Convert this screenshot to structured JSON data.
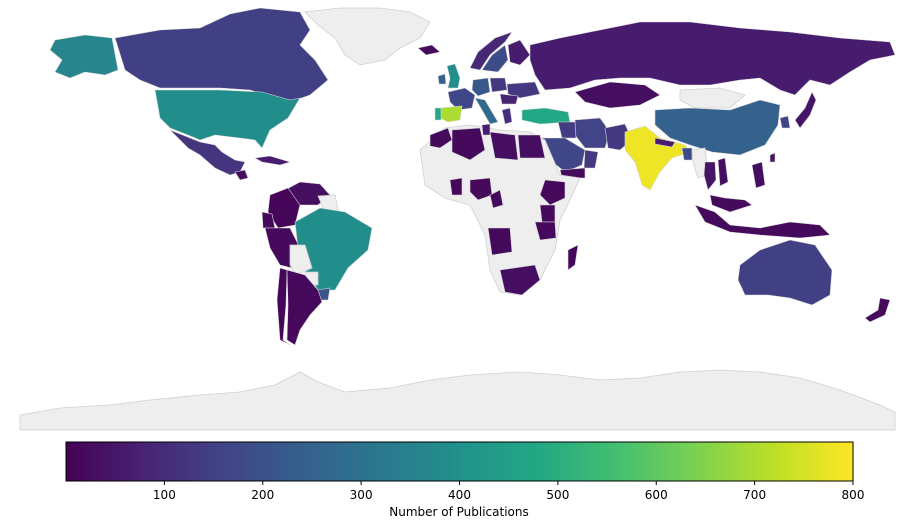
{
  "map": {
    "no_data_color": "#eeeeee",
    "colormap": "viridis",
    "countries": [
      {
        "name": "United States",
        "value": 390
      },
      {
        "name": "Canada",
        "value": 150
      },
      {
        "name": "Alaska",
        "value": 360
      },
      {
        "name": "Greenland",
        "value": null
      },
      {
        "name": "Mexico",
        "value": 120
      },
      {
        "name": "Cuba",
        "value": 60
      },
      {
        "name": "Guatemala",
        "value": 30
      },
      {
        "name": "Colombia",
        "value": 10
      },
      {
        "name": "Venezuela",
        "value": 30
      },
      {
        "name": "Ecuador",
        "value": 20
      },
      {
        "name": "Peru",
        "value": 20
      },
      {
        "name": "Brazil",
        "value": 390
      },
      {
        "name": "Bolivia",
        "value": null
      },
      {
        "name": "Paraguay",
        "value": null
      },
      {
        "name": "Chile",
        "value": 10
      },
      {
        "name": "Argentina",
        "value": 15
      },
      {
        "name": "Uruguay",
        "value": 200
      },
      {
        "name": "Guyana",
        "value": null
      },
      {
        "name": "Iceland",
        "value": 20
      },
      {
        "name": "United Kingdom",
        "value": 390
      },
      {
        "name": "Ireland",
        "value": 250
      },
      {
        "name": "Norway",
        "value": 90
      },
      {
        "name": "Sweden",
        "value": 180
      },
      {
        "name": "Finland",
        "value": 60
      },
      {
        "name": "France",
        "value": 170
      },
      {
        "name": "Spain",
        "value": 700
      },
      {
        "name": "Portugal",
        "value": 480
      },
      {
        "name": "Germany",
        "value": 220
      },
      {
        "name": "Poland",
        "value": 130
      },
      {
        "name": "Italy",
        "value": 270
      },
      {
        "name": "Ukraine",
        "value": 130
      },
      {
        "name": "Romania",
        "value": 80
      },
      {
        "name": "Greece",
        "value": 110
      },
      {
        "name": "Turkey",
        "value": 480
      },
      {
        "name": "Russia",
        "value": 60
      },
      {
        "name": "Kazakhstan",
        "value": 30
      },
      {
        "name": "Mongolia",
        "value": null
      },
      {
        "name": "China",
        "value": 250
      },
      {
        "name": "India",
        "value": 780
      },
      {
        "name": "Pakistan",
        "value": 130
      },
      {
        "name": "Iran",
        "value": 160
      },
      {
        "name": "Saudi Arabia",
        "value": 170
      },
      {
        "name": "Iraq",
        "value": 140
      },
      {
        "name": "Oman",
        "value": 130
      },
      {
        "name": "Yemen",
        "value": 20
      },
      {
        "name": "Bangladesh",
        "value": 180
      },
      {
        "name": "Nepal",
        "value": 60
      },
      {
        "name": "Myanmar",
        "value": null
      },
      {
        "name": "Thailand",
        "value": 40
      },
      {
        "name": "Vietnam",
        "value": 30
      },
      {
        "name": "Malaysia",
        "value": 20
      },
      {
        "name": "Indonesia",
        "value": 20
      },
      {
        "name": "Philippines",
        "value": 30
      },
      {
        "name": "Japan",
        "value": 40
      },
      {
        "name": "South Korea",
        "value": 160
      },
      {
        "name": "Taiwan",
        "value": 40
      },
      {
        "name": "Australia",
        "value": 150
      },
      {
        "name": "New Zealand",
        "value": 20
      },
      {
        "name": "Morocco",
        "value": 20
      },
      {
        "name": "Algeria",
        "value": 20
      },
      {
        "name": "Tunisia",
        "value": 60
      },
      {
        "name": "Libya",
        "value": 30
      },
      {
        "name": "Egypt",
        "value": 30
      },
      {
        "name": "Mali",
        "value": null
      },
      {
        "name": "Niger",
        "value": null
      },
      {
        "name": "Sudan",
        "value": null
      },
      {
        "name": "Nigeria",
        "value": 20
      },
      {
        "name": "Ghana",
        "value": 15
      },
      {
        "name": "Cameroon",
        "value": 20
      },
      {
        "name": "Ethiopia",
        "value": 15
      },
      {
        "name": "Kenya",
        "value": 20
      },
      {
        "name": "Tanzania",
        "value": 20
      },
      {
        "name": "Congo DR",
        "value": null
      },
      {
        "name": "Angola",
        "value": 20
      },
      {
        "name": "Zambia",
        "value": null
      },
      {
        "name": "South Africa",
        "value": 30
      },
      {
        "name": "Madagascar",
        "value": 15
      },
      {
        "name": "Antarctica",
        "value": null
      }
    ]
  },
  "colorbar": {
    "label": "Number of Publications",
    "min": 0,
    "max": 800,
    "ticks": [
      "100",
      "200",
      "300",
      "400",
      "500",
      "600",
      "700",
      "800"
    ],
    "tick_values": [
      100,
      200,
      300,
      400,
      500,
      600,
      700,
      800
    ]
  }
}
